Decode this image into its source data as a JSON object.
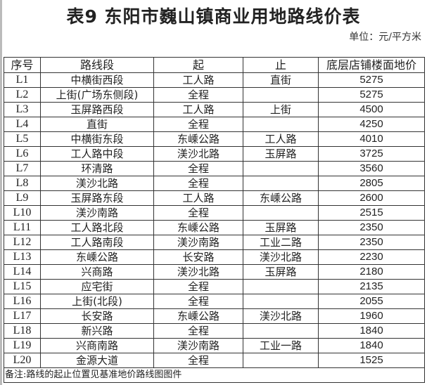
{
  "title": "表9  东阳市巍山镇商业用地路线价表",
  "unit": "单位：元/平方米",
  "table": {
    "headers": [
      "序号",
      "路线段",
      "起",
      "止",
      "底层店铺楼面地价"
    ],
    "rows": [
      [
        "L1",
        "中横街西段",
        "工人路",
        "直街",
        "5275"
      ],
      [
        "L2",
        "上街(广场东侧段)",
        "全程",
        "",
        "5275"
      ],
      [
        "L3",
        "玉屏路西段",
        "工人路",
        "上街",
        "4500"
      ],
      [
        "L4",
        "直街",
        "全程",
        "",
        "4250"
      ],
      [
        "L5",
        "中横街东段",
        "东嵊公路",
        "工人路",
        "4010"
      ],
      [
        "L6",
        "工人路中段",
        "渼沙北路",
        "玉屏路",
        "3725"
      ],
      [
        "L7",
        "环清路",
        "全程",
        "",
        "3560"
      ],
      [
        "L8",
        "渼沙北路",
        "全程",
        "",
        "2805"
      ],
      [
        "L9",
        "玉屏路东段",
        "工人路",
        "东嵊公路",
        "2600"
      ],
      [
        "L10",
        "渼沙南路",
        "全程",
        "",
        "2515"
      ],
      [
        "L11",
        "工人路北段",
        "东嵊公路",
        "玉屏路",
        "2350"
      ],
      [
        "L12",
        "工人路南段",
        "渼沙南路",
        "工业二路",
        "2350"
      ],
      [
        "L13",
        "东嵊公路",
        "长安路",
        "渼沙北路",
        "2230"
      ],
      [
        "L14",
        "兴商路",
        "渼沙北路",
        "玉屏路",
        "2180"
      ],
      [
        "L15",
        "应宅街",
        "全程",
        "",
        "2135"
      ],
      [
        "L16",
        "上街(北段)",
        "全程",
        "",
        "2055"
      ],
      [
        "L17",
        "长安路",
        "东嵊公路",
        "渼沙北路",
        "1960"
      ],
      [
        "L18",
        "新兴路",
        "全程",
        "",
        "1840"
      ],
      [
        "L19",
        "兴商南路",
        "渼沙南路",
        "工业一路",
        "1840"
      ],
      [
        "L20",
        "金源大道",
        "全程",
        "",
        "1525"
      ]
    ],
    "note": "备注:路线的起止位置见基准地价路线图图件"
  }
}
